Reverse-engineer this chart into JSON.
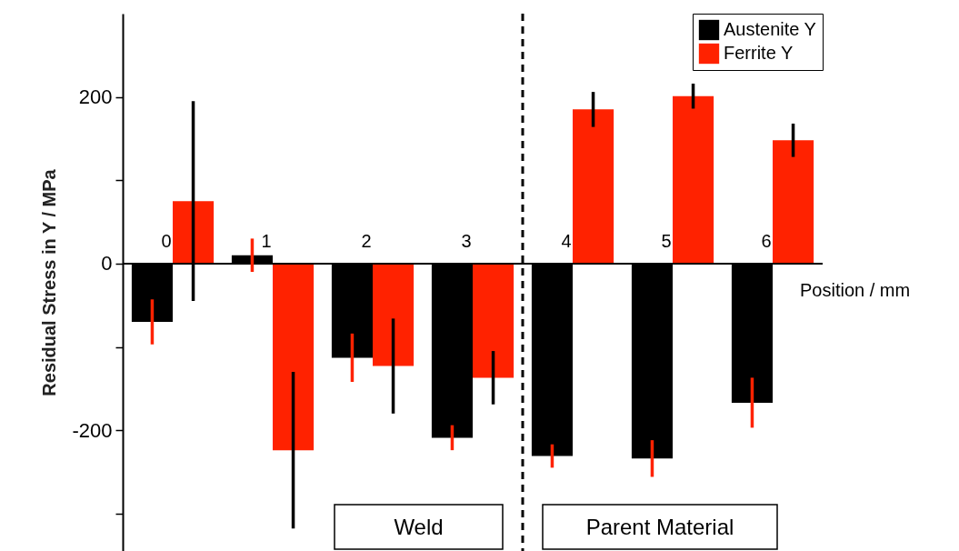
{
  "chart_data": {
    "type": "bar",
    "xlabel": "Position / mm",
    "ylabel": "Residual Stress in Y / MPa",
    "x": [
      0,
      1,
      2,
      3,
      4,
      5,
      6
    ],
    "xlim": [
      -0.5,
      6.5
    ],
    "xticks": [
      0,
      1,
      2,
      3,
      4,
      5,
      6
    ],
    "ref_lines": [
      {
        "axis": "x",
        "value": 3.5,
        "line_style": "dashed",
        "color": "#000000"
      }
    ],
    "series": [
      {
        "name": "Austenite Y",
        "color": "#000000",
        "values": [
          -70,
          10,
          -113,
          -209,
          -231,
          -234,
          -167
        ],
        "errors": [
          27,
          20,
          29,
          15,
          14,
          22,
          30
        ]
      },
      {
        "name": "Ferrite Y",
        "color": "#ff2200",
        "values": [
          75,
          -224,
          -123,
          -137,
          185,
          201,
          148
        ],
        "errors": [
          120,
          94,
          57,
          32,
          21,
          15,
          20
        ]
      }
    ],
    "ylim": [
      -345,
      300
    ],
    "yticks": [
      {
        "value": -300,
        "label": null
      },
      -200,
      {
        "value": -100,
        "label": null
      },
      0,
      {
        "value": 100,
        "label": null
      },
      200
    ],
    "annotations": [
      "Weld",
      "Parent Material"
    ],
    "legend": "top right",
    "grid": false
  }
}
